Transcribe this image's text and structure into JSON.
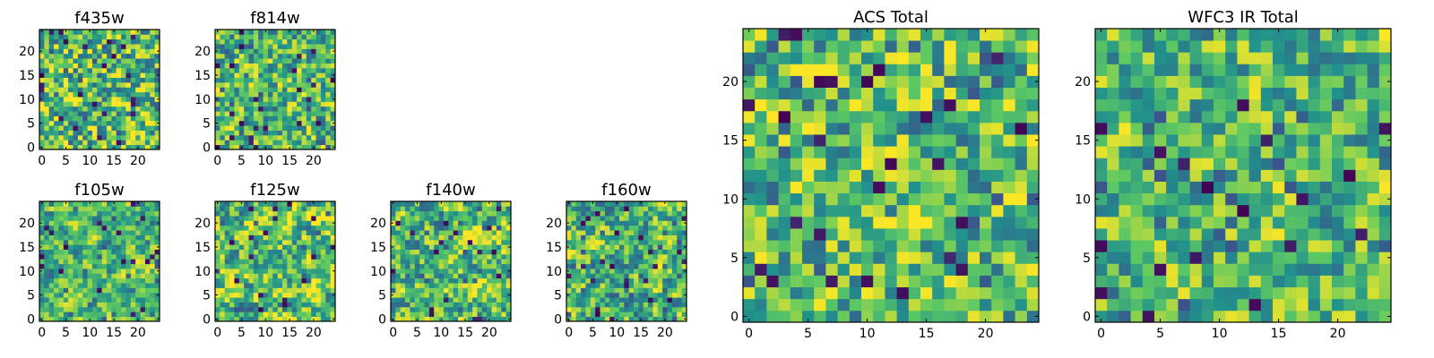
{
  "figure": {
    "colormap": "viridis",
    "colormap_stops": [
      "#440154",
      "#3b528b",
      "#21918c",
      "#5ec962",
      "#fde725"
    ]
  },
  "chart_data": [
    {
      "type": "heatmap",
      "title": "f435w",
      "xlabel": "",
      "ylabel": "",
      "grid": false,
      "grid_size": [
        25,
        25
      ],
      "x_ticks": [
        0,
        5,
        10,
        15,
        20
      ],
      "y_ticks": [
        0,
        5,
        10,
        15,
        20
      ],
      "seed": 435,
      "smoothness": 0.15,
      "low_outliers": 0.035,
      "high_bias": 0.1
    },
    {
      "type": "heatmap",
      "title": "f814w",
      "xlabel": "",
      "ylabel": "",
      "grid": false,
      "grid_size": [
        25,
        25
      ],
      "x_ticks": [
        0,
        5,
        10,
        15,
        20
      ],
      "y_ticks": [
        0,
        5,
        10,
        15,
        20
      ],
      "seed": 814,
      "smoothness": 0.25,
      "low_outliers": 0.03,
      "high_bias": 0.05
    },
    {
      "type": "heatmap",
      "title": "f105w",
      "xlabel": "",
      "ylabel": "",
      "grid": false,
      "grid_size": [
        25,
        25
      ],
      "x_ticks": [
        0,
        5,
        10,
        15,
        20
      ],
      "y_ticks": [
        0,
        5,
        10,
        15,
        20
      ],
      "seed": 105,
      "smoothness": 0.55,
      "low_outliers": 0.03,
      "high_bias": 0.05
    },
    {
      "type": "heatmap",
      "title": "f125w",
      "xlabel": "",
      "ylabel": "",
      "grid": false,
      "grid_size": [
        25,
        25
      ],
      "x_ticks": [
        0,
        5,
        10,
        15,
        20
      ],
      "y_ticks": [
        0,
        5,
        10,
        15,
        20
      ],
      "seed": 125,
      "smoothness": 0.55,
      "low_outliers": 0.02,
      "high_bias": 0.22
    },
    {
      "type": "heatmap",
      "title": "f140w",
      "xlabel": "",
      "ylabel": "",
      "grid": false,
      "grid_size": [
        25,
        25
      ],
      "x_ticks": [
        0,
        5,
        10,
        15,
        20
      ],
      "y_ticks": [
        0,
        5,
        10,
        15,
        20
      ],
      "seed": 140,
      "smoothness": 0.5,
      "low_outliers": 0.03,
      "high_bias": 0.12
    },
    {
      "type": "heatmap",
      "title": "f160w",
      "xlabel": "",
      "ylabel": "",
      "grid": false,
      "grid_size": [
        25,
        25
      ],
      "x_ticks": [
        0,
        5,
        10,
        15,
        20
      ],
      "y_ticks": [
        0,
        5,
        10,
        15,
        20
      ],
      "seed": 160,
      "smoothness": 0.5,
      "low_outliers": 0.035,
      "high_bias": 0.1
    },
    {
      "type": "heatmap",
      "title": "ACS Total",
      "xlabel": "",
      "ylabel": "",
      "grid": false,
      "grid_size": [
        25,
        25
      ],
      "x_ticks": [
        0,
        5,
        10,
        15,
        20
      ],
      "y_ticks": [
        0,
        5,
        10,
        15,
        20
      ],
      "seed": 77,
      "smoothness": 0.2,
      "low_outliers": 0.035,
      "high_bias": 0.05
    },
    {
      "type": "heatmap",
      "title": "WFC3 IR Total",
      "xlabel": "",
      "ylabel": "",
      "grid": false,
      "grid_size": [
        25,
        25
      ],
      "x_ticks": [
        0,
        5,
        10,
        15,
        20
      ],
      "y_ticks": [
        0,
        5,
        10,
        15,
        20
      ],
      "seed": 31,
      "smoothness": 0.3,
      "low_outliers": 0.03,
      "high_bias": 0.0
    }
  ]
}
